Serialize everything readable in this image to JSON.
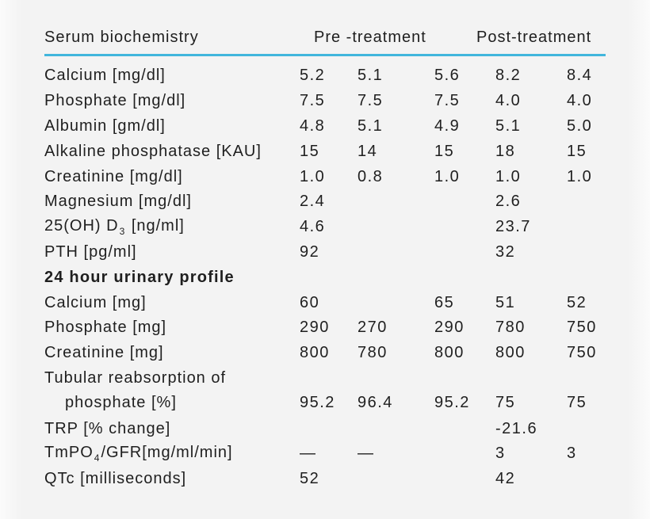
{
  "table": {
    "header": {
      "col_label": "Serum biochemistry",
      "pre": "Pre -treatment",
      "post": "Post-treatment"
    },
    "rows": [
      {
        "label_parts": [
          {
            "t": "Calcium [mg/dl]"
          }
        ],
        "values": [
          "5.2",
          "5.1",
          "5.6",
          "8.2",
          "8.4"
        ]
      },
      {
        "label_parts": [
          {
            "t": "Phosphate [mg/dl]"
          }
        ],
        "values": [
          "7.5",
          "7.5",
          "7.5",
          "4.0",
          "4.0"
        ]
      },
      {
        "label_parts": [
          {
            "t": "Albumin [gm/dl]"
          }
        ],
        "values": [
          "4.8",
          "5.1",
          "4.9",
          "5.1",
          "5.0"
        ]
      },
      {
        "label_parts": [
          {
            "t": "Alkaline phosphatase [KAU]"
          }
        ],
        "values": [
          "15",
          "14",
          "15",
          "18",
          "15"
        ]
      },
      {
        "label_parts": [
          {
            "t": "Creatinine [mg/dl]"
          }
        ],
        "values": [
          "1.0",
          "0.8",
          "1.0",
          "1.0",
          "1.0"
        ]
      },
      {
        "label_parts": [
          {
            "t": "Magnesium [mg/dl]"
          }
        ],
        "values": [
          "2.4",
          "",
          "",
          "2.6",
          ""
        ]
      },
      {
        "label_parts": [
          {
            "t": "25(OH) D"
          },
          {
            "t": "3",
            "sub": true
          },
          {
            "t": " [ng/ml]"
          }
        ],
        "values": [
          "4.6",
          "",
          "",
          "23.7",
          ""
        ]
      },
      {
        "label_parts": [
          {
            "t": "PTH [pg/ml]"
          }
        ],
        "values": [
          "92",
          "",
          "",
          "32",
          ""
        ]
      },
      {
        "label_parts": [
          {
            "t": "24 hour urinary profile"
          }
        ],
        "bold": true,
        "values": [
          "",
          "",
          "",
          "",
          ""
        ]
      },
      {
        "label_parts": [
          {
            "t": "Calcium [mg]"
          }
        ],
        "values": [
          "60",
          "",
          "65",
          "51",
          "52"
        ]
      },
      {
        "label_parts": [
          {
            "t": "Phosphate [mg]"
          }
        ],
        "values": [
          "290",
          "270",
          "290",
          "780",
          "750"
        ]
      },
      {
        "label_parts": [
          {
            "t": "Creatinine [mg]"
          }
        ],
        "values": [
          "800",
          "780",
          "800",
          "800",
          "750"
        ]
      },
      {
        "label_parts": [
          {
            "t": "Tubular reabsorption of"
          },
          {
            "br": true
          },
          {
            "t": "phosphate [%]",
            "indent": true
          }
        ],
        "two_line": true,
        "values": [
          "95.2",
          "96.4",
          "95.2",
          "75",
          "75"
        ]
      },
      {
        "label_parts": [
          {
            "t": "TRP [% change]"
          }
        ],
        "values": [
          "",
          "",
          "",
          "-21.6",
          ""
        ]
      },
      {
        "label_parts": [
          {
            "t": "TmPO"
          },
          {
            "t": "4",
            "sub": true
          },
          {
            "t": "/GFR[mg/ml/min]"
          }
        ],
        "values": [
          "—",
          "—",
          "",
          "3",
          "3"
        ]
      },
      {
        "label_parts": [
          {
            "t": "QTc [milliseconds]"
          }
        ],
        "values": [
          "52",
          "",
          "",
          "42",
          ""
        ]
      }
    ]
  },
  "colors": {
    "accent_line": "#41b6dc",
    "text": "#1f1f1f",
    "background": "#f3f3f3"
  }
}
